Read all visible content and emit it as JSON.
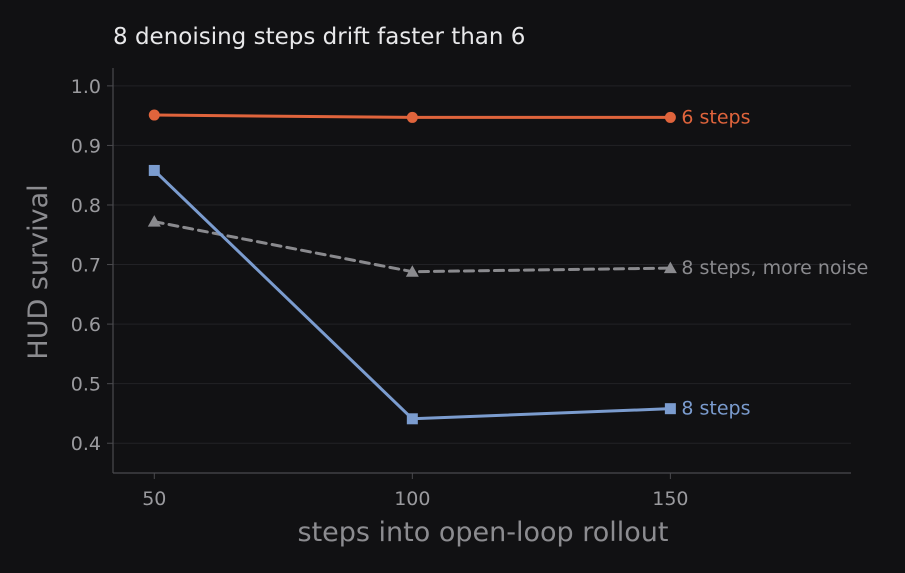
{
  "chart_data": {
    "type": "line",
    "title": "8 denoising steps drift faster than 6",
    "xlabel": "steps into open-loop rollout",
    "ylabel": "HUD survival",
    "xlim": [
      42,
      185
    ],
    "ylim": [
      0.35,
      1.03
    ],
    "x_ticks": [
      50,
      100,
      150
    ],
    "y_ticks": [
      0.4,
      0.5,
      0.6,
      0.7,
      0.8,
      0.9,
      1.0
    ],
    "grid": "horizontal",
    "legend": "none (series labelled at line ends)",
    "colors": {
      "background": "#111113",
      "axis": "#4a4a4e",
      "grid": "#222226",
      "tick_text": "#9a9a9e",
      "title_text": "#e8e8ea",
      "label_text": "#8c8c90"
    },
    "series": [
      {
        "name": "6 steps",
        "x": [
          50,
          100,
          150
        ],
        "values": [
          0.951,
          0.947,
          0.947
        ],
        "color": "#e0643c",
        "marker": "circle",
        "dash": "solid"
      },
      {
        "name": "8 steps, more noise",
        "x": [
          50,
          100,
          150
        ],
        "values": [
          0.772,
          0.688,
          0.694
        ],
        "color": "#8a8a8e",
        "marker": "triangle",
        "dash": "dashed"
      },
      {
        "name": "8 steps",
        "x": [
          50,
          100,
          150
        ],
        "values": [
          0.858,
          0.441,
          0.458
        ],
        "color": "#7b9ccf",
        "marker": "square",
        "dash": "solid"
      }
    ]
  }
}
